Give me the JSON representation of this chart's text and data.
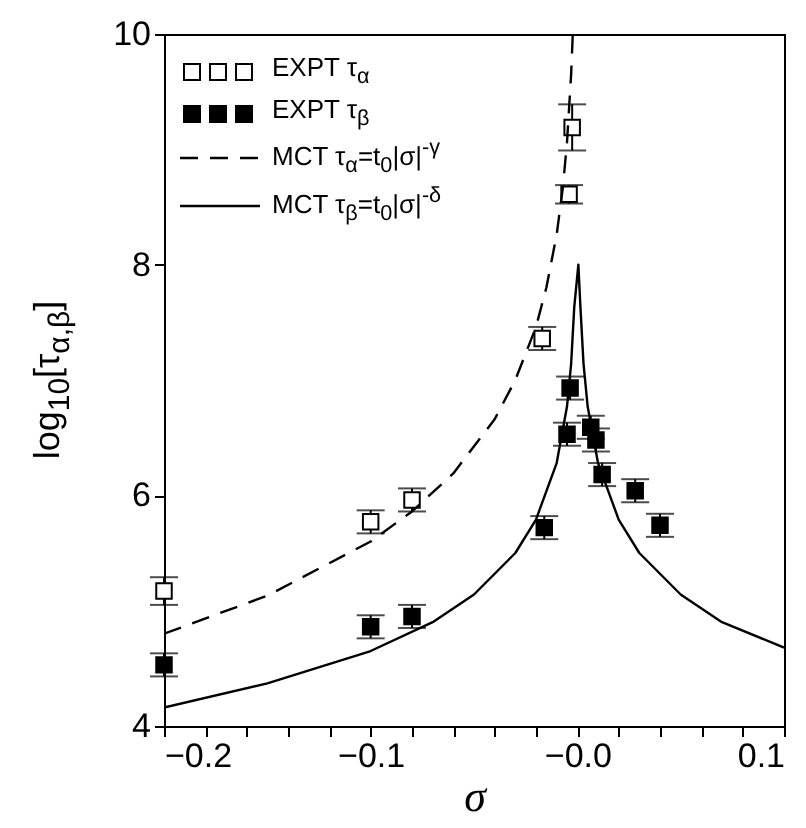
{
  "chart_data": {
    "type": "scatter",
    "xlabel": "σ",
    "ylabel": "log$_{10}$[τ$_{α,β}$]",
    "xlim": [
      -0.2,
      0.1
    ],
    "ylim": [
      4,
      10
    ],
    "xticks": [
      -0.2,
      {
        "value": -0.18,
        "label": null
      },
      {
        "value": -0.16,
        "label": null
      },
      {
        "value": -0.14,
        "label": null
      },
      {
        "value": -0.12,
        "label": null
      },
      -0.1,
      {
        "value": -0.08,
        "label": null
      },
      {
        "value": -0.06,
        "label": null
      },
      {
        "value": -0.04,
        "label": null
      },
      {
        "value": -0.02,
        "label": null
      },
      {
        "value": 0,
        "label": "−0.0"
      },
      {
        "value": 0.02,
        "label": null
      },
      {
        "value": 0.04,
        "label": null
      },
      {
        "value": 0.06,
        "label": null
      },
      {
        "value": 0.08,
        "label": null
      },
      0.1
    ],
    "yticks": [
      4,
      6,
      8,
      10
    ],
    "grid": false,
    "legend": "top left",
    "marker": "square",
    "series": [
      {
        "name": "EXPT τ$_{α}$",
        "type": "scatter",
        "color": "#ffffff",
        "x": [
          -0.2,
          -0.1,
          -0.08,
          -0.017,
          -0.004,
          -0.0025
        ],
        "values": [
          5.17,
          5.77,
          5.96,
          7.36,
          8.61,
          9.19
        ],
        "errors": [
          0.12,
          0.1,
          0.1,
          0.1,
          0.08,
          0.2
        ]
      },
      {
        "name": "EXPT τ$_{β}$",
        "type": "scatter",
        "color": "#000000",
        "x": [
          -0.2,
          -0.1,
          -0.08,
          -0.016,
          -0.0035,
          -0.005,
          0.0065,
          0.009,
          0.012,
          0.028,
          0.04
        ],
        "values": [
          4.53,
          4.86,
          4.95,
          5.72,
          6.93,
          6.53,
          6.59,
          6.48,
          6.18,
          6.04,
          5.74
        ],
        "errors": [
          0.1,
          0.1,
          0.1,
          0.1,
          0.1,
          0.1,
          0.1,
          0.1,
          0.1,
          0.1,
          0.1
        ]
      },
      {
        "name": "MCT τ$_{α}$=t$_{0}$|σ|$^{-γ}$",
        "type": "line",
        "line_style": "dashed",
        "marker": "none",
        "color": "#000000",
        "x": [
          -0.2,
          -0.15,
          -0.1,
          -0.08,
          -0.06,
          -0.04,
          -0.03,
          -0.02,
          -0.015,
          -0.01,
          -0.007,
          -0.005,
          -0.003,
          -0.0022
        ],
        "values": [
          4.8,
          5.13,
          5.6,
          5.86,
          6.19,
          6.66,
          7.0,
          7.46,
          7.8,
          8.26,
          8.67,
          9.06,
          9.65,
          10.0
        ]
      },
      {
        "name": "MCT τ$_{β}$=t$_{0}$|σ|$^{-δ}$",
        "type": "line",
        "line_style": "solid",
        "marker": "none",
        "color": "#000000",
        "x": [
          -0.2,
          -0.15,
          -0.1,
          -0.07,
          -0.05,
          -0.03,
          -0.02,
          -0.01,
          -0.005,
          -0.003,
          -0.0015,
          0.0005,
          0.0015,
          0.003,
          0.005,
          0.01,
          0.02,
          0.03,
          0.05,
          0.07,
          0.1
        ],
        "values": [
          4.16,
          4.37,
          4.65,
          4.9,
          5.14,
          5.5,
          5.79,
          6.28,
          6.77,
          7.14,
          7.63,
          8.0,
          7.63,
          7.14,
          6.77,
          6.28,
          5.79,
          5.5,
          5.14,
          4.9,
          4.68
        ]
      }
    ]
  }
}
